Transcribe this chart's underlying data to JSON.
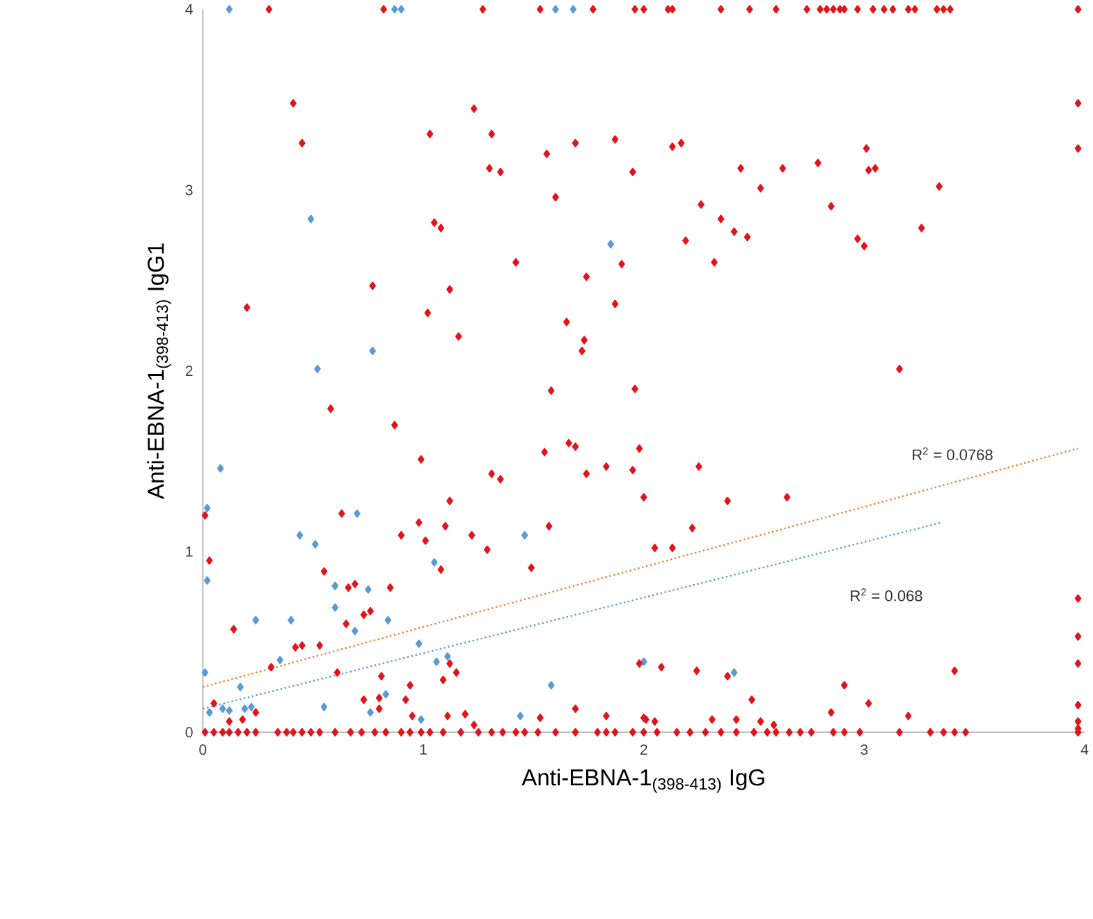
{
  "chart_data": {
    "type": "scatter",
    "xlabel": "Anti-EBNA-1$_{(398-413)}$ IgG",
    "ylabel": "Anti-EBNA-1$_{(398-413)}$ IgG1",
    "xlim": [
      0,
      4
    ],
    "ylim": [
      0,
      4
    ],
    "xticks": [
      0,
      1,
      2,
      3,
      4
    ],
    "yticks": [
      0,
      1,
      2,
      3,
      4
    ],
    "grid": false,
    "marker": "diamond",
    "series": [
      {
        "color": "#5b9bd5",
        "x": [
          0.12,
          0.87,
          0.9,
          1.6,
          1.68,
          0.49,
          1.85,
          0.77,
          0.52,
          0.08,
          0.02,
          0.7,
          0.44,
          0.51,
          1.46,
          0.02,
          1.05,
          0.6,
          0.75,
          0.6,
          0.24,
          0.4,
          0.69,
          0.84,
          0.98,
          0.35,
          1.06,
          1.11,
          2.0,
          0.01,
          0.17,
          1.58,
          0.83,
          0.55,
          0.76,
          0.03,
          0.09,
          0.12,
          0.19,
          0.22,
          0.99,
          1.44,
          2.41
        ],
        "values": [
          4,
          4,
          4,
          4,
          4,
          2.84,
          2.7,
          2.11,
          2.01,
          1.46,
          1.24,
          1.21,
          1.09,
          1.04,
          1.09,
          0.84,
          0.94,
          0.81,
          0.79,
          0.69,
          0.62,
          0.62,
          0.56,
          0.62,
          0.49,
          0.4,
          0.39,
          0.42,
          0.39,
          0.33,
          0.25,
          0.26,
          0.21,
          0.14,
          0.11,
          0.11,
          0.13,
          0.12,
          0.13,
          0.14,
          0.07,
          0.09,
          0.33
        ]
      },
      {
        "color": "#e3141b",
        "x": [
          0.3,
          0.82,
          1.27,
          1.53,
          1.77,
          1.96,
          2.0,
          2.11,
          2.13,
          2.35,
          2.48,
          2.6,
          2.74,
          2.8,
          2.83,
          2.86,
          2.89,
          2.91,
          2.97,
          3.04,
          3.09,
          3.13,
          3.2,
          3.23,
          3.33,
          3.36,
          3.39,
          3.97,
          0.41,
          1.23,
          0.45,
          1.03,
          1.31,
          1.56,
          1.69,
          1.87,
          1.3,
          1.35,
          1.95,
          1.6,
          1.05,
          1.08,
          1.42,
          1.9,
          1.74,
          0.77,
          1.12,
          1.87,
          0.2,
          1.02,
          1.65,
          1.16,
          1.73,
          1.72,
          3.97,
          3.97,
          2.13,
          2.17,
          3.01,
          2.44,
          2.63,
          2.79,
          3.02,
          3.05,
          2.53,
          3.34,
          2.26,
          2.85,
          2.35,
          2.41,
          2.47,
          2.19,
          2.97,
          3.0,
          3.26,
          2.32,
          3.16,
          0.58,
          0.87,
          1.58,
          1.96,
          0.99,
          1.55,
          1.66,
          1.69,
          1.98,
          1.31,
          1.35,
          1.74,
          1.83,
          1.95,
          2.0,
          0.01,
          0.63,
          1.12,
          0.98,
          1.1,
          0.9,
          1.01,
          1.22,
          1.29,
          1.57,
          0.03,
          1.08,
          1.49,
          0.55,
          0.66,
          0.69,
          0.85,
          0.73,
          0.76,
          0.14,
          0.65,
          0.42,
          0.45,
          0.53,
          0.31,
          1.12,
          1.15,
          1.09,
          0.61,
          0.81,
          1.98,
          0.94,
          0.73,
          0.8,
          0.92,
          0.8,
          1.69,
          0.05,
          0.24,
          0.12,
          0.18,
          0.95,
          1.11,
          1.19,
          1.53,
          1.83,
          2.0,
          1.23,
          2.25,
          2.38,
          2.65,
          2.22,
          2.05,
          2.13,
          3.97,
          3.97,
          3.97,
          3.97,
          3.97,
          3.97,
          3.97,
          2.08,
          2.24,
          2.38,
          2.49,
          2.91,
          3.02,
          2.85,
          3.41,
          3.2,
          2.01,
          2.05,
          2.31,
          2.42,
          2.53,
          2.59,
          0.01,
          0.05,
          0.09,
          0.12,
          0.16,
          0.2,
          0.24,
          0.34,
          0.38,
          0.41,
          0.45,
          0.49,
          0.53,
          0.6,
          0.67,
          0.72,
          0.78,
          0.83,
          0.9,
          0.94,
          0.99,
          1.03,
          1.09,
          1.17,
          1.25,
          1.31,
          1.36,
          1.42,
          1.46,
          1.52,
          1.6,
          1.69,
          1.79,
          1.83,
          1.87,
          1.95,
          2.0,
          2.06,
          2.15,
          2.21,
          2.28,
          2.35,
          2.42,
          2.5,
          2.56,
          2.6,
          2.66,
          2.71,
          2.76,
          2.86,
          2.91,
          2.98,
          3.16,
          3.3,
          3.36,
          3.41,
          3.46
        ],
        "values": [
          4,
          4,
          4,
          4,
          4,
          4,
          4,
          4,
          4,
          4,
          4,
          4,
          4,
          4,
          4,
          4,
          4,
          4,
          4,
          4,
          4,
          4,
          4,
          4,
          4,
          4,
          4,
          4,
          3.48,
          3.45,
          3.26,
          3.31,
          3.31,
          3.2,
          3.26,
          3.28,
          3.12,
          3.1,
          3.1,
          2.96,
          2.82,
          2.79,
          2.6,
          2.59,
          2.52,
          2.47,
          2.45,
          2.37,
          2.35,
          2.32,
          2.27,
          2.19,
          2.17,
          2.11,
          3.48,
          3.23,
          3.24,
          3.26,
          3.23,
          3.12,
          3.12,
          3.15,
          3.11,
          3.12,
          3.01,
          3.02,
          2.92,
          2.91,
          2.84,
          2.77,
          2.74,
          2.72,
          2.73,
          2.69,
          2.79,
          2.6,
          2.01,
          1.79,
          1.7,
          1.89,
          1.9,
          1.51,
          1.55,
          1.6,
          1.58,
          1.57,
          1.43,
          1.4,
          1.43,
          1.47,
          1.45,
          1.3,
          1.2,
          1.21,
          1.28,
          1.16,
          1.14,
          1.09,
          1.06,
          1.09,
          1.01,
          1.14,
          0.95,
          0.9,
          0.91,
          0.89,
          0.8,
          0.82,
          0.8,
          0.65,
          0.67,
          0.57,
          0.6,
          0.47,
          0.48,
          0.48,
          0.36,
          0.38,
          0.33,
          0.29,
          0.33,
          0.31,
          0.38,
          0.26,
          0.18,
          0.19,
          0.18,
          0.13,
          0.13,
          0.16,
          0.11,
          0.06,
          0.07,
          0.09,
          0.09,
          0.1,
          0.08,
          0.09,
          0.08,
          0.04,
          1.47,
          1.28,
          1.3,
          1.13,
          1.02,
          1.02,
          0.74,
          0.53,
          0.38,
          0.15,
          0.06,
          0.02,
          0,
          0.36,
          0.34,
          0.31,
          0.18,
          0.26,
          0.16,
          0.11,
          0.34,
          0.09,
          0.07,
          0.06,
          0.07,
          0.07,
          0.06,
          0.04,
          0,
          0,
          0,
          0,
          0,
          0,
          0,
          0,
          0,
          0,
          0,
          0,
          0,
          0,
          0,
          0,
          0,
          0,
          0,
          0,
          0,
          0,
          0,
          0,
          0,
          0,
          0,
          0,
          0,
          0,
          0,
          0,
          0,
          0,
          0,
          0,
          0,
          0,
          0,
          0,
          0,
          0,
          0,
          0,
          0,
          0,
          0,
          0,
          0,
          0,
          0,
          0,
          0,
          0,
          0,
          0,
          0
        ]
      },
      {
        "type": "line",
        "color": "#ed7d31",
        "line_style": "dotted",
        "marker": "none",
        "x": [
          0,
          3.97
        ],
        "values": [
          0.25,
          1.57
        ]
      },
      {
        "type": "line",
        "color": "#5b9bd5",
        "line_style": "dotted",
        "marker": "none",
        "x": [
          0,
          3.35
        ],
        "values": [
          0.13,
          1.16
        ]
      }
    ],
    "annotations": [
      "R$^{2}$ = 0.0768",
      "R$^{2}$ = 0.068"
    ]
  }
}
